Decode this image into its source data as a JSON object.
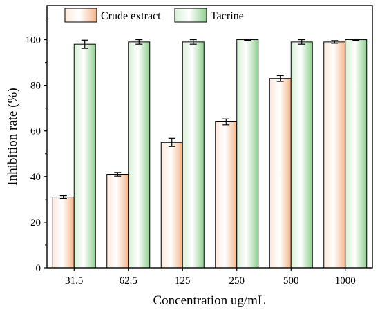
{
  "chart_data": {
    "type": "bar",
    "categories": [
      "31.5",
      "62.5",
      "125",
      "250",
      "500",
      "1000"
    ],
    "series": [
      {
        "name": "Crude extract",
        "values": [
          31,
          41,
          55,
          64,
          83,
          99
        ],
        "errors": [
          0.6,
          0.8,
          1.8,
          1.3,
          1.3,
          0.6
        ],
        "color": "#f7c7a8"
      },
      {
        "name": "Tacrine",
        "values": [
          98,
          99,
          99,
          100,
          99,
          100
        ],
        "errors": [
          1.8,
          1.0,
          1.0,
          0.3,
          1.0,
          0.3
        ],
        "color": "#a9d8a9"
      }
    ],
    "xlabel": "Concentration ug/mL",
    "ylabel": "Inhibition rate (%)",
    "ylim": [
      0,
      115
    ],
    "yticks": [
      0,
      20,
      40,
      60,
      80,
      100
    ],
    "legend_position": "top-left",
    "grid": false
  }
}
